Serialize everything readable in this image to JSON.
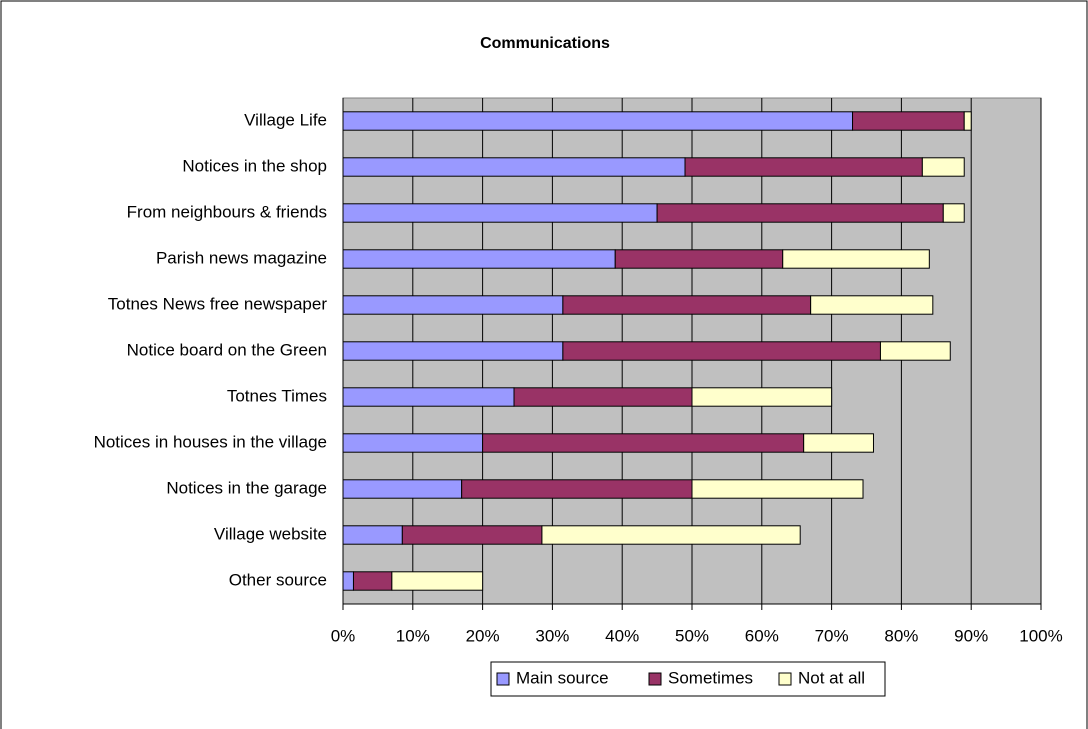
{
  "chart_data": {
    "type": "stacked-barh",
    "title": "Communications",
    "categories": [
      "Village Life",
      "Notices in the shop",
      "From neighbours & friends",
      "Parish news magazine",
      "Totnes News free newspaper",
      "Notice board on the Green",
      "Totnes Times",
      "Notices in houses in the village",
      "Notices in the garage",
      "Village website",
      "Other source"
    ],
    "series": [
      {
        "name": "Main source",
        "color": "#9999ff",
        "values": [
          73,
          49,
          45,
          39,
          31.5,
          31.5,
          24.5,
          20,
          17,
          8.5,
          1.5
        ]
      },
      {
        "name": "Sometimes",
        "color": "#993366",
        "values": [
          16,
          34,
          41,
          24,
          35.5,
          45.5,
          25.5,
          46,
          33,
          20,
          5.5
        ]
      },
      {
        "name": "Not at all",
        "color": "#ffffcc",
        "values": [
          1,
          6,
          3,
          21,
          17.5,
          10,
          20,
          10,
          24.5,
          37,
          13
        ]
      }
    ],
    "xlim": [
      0,
      100
    ],
    "xticks": [
      {
        "value": 0,
        "label": "0%"
      },
      {
        "value": 10,
        "label": "10%"
      },
      {
        "value": 20,
        "label": "20%"
      },
      {
        "value": 30,
        "label": "30%"
      },
      {
        "value": 40,
        "label": "40%"
      },
      {
        "value": 50,
        "label": "50%"
      },
      {
        "value": 60,
        "label": "60%"
      },
      {
        "value": 70,
        "label": "70%"
      },
      {
        "value": 80,
        "label": "80%"
      },
      {
        "value": 90,
        "label": "90%"
      },
      {
        "value": 100,
        "label": "100%"
      }
    ],
    "grid": true,
    "legend": "bottom",
    "plot_background": "#c0c0c0"
  }
}
